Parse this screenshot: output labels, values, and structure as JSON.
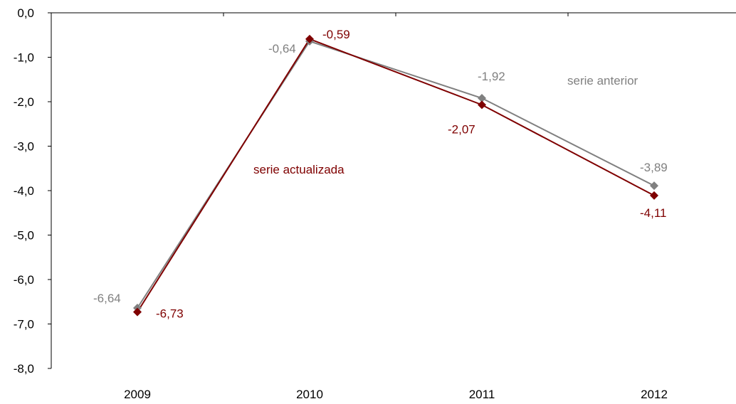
{
  "chart_data": {
    "type": "line",
    "categories": [
      "2009",
      "2010",
      "2011",
      "2012"
    ],
    "ylim": [
      -8,
      0
    ],
    "yticks": [
      "0,0",
      "-1,0",
      "-2,0",
      "-3,0",
      "-4,0",
      "-5,0",
      "-6,0",
      "-7,0",
      "-8,0"
    ],
    "grid": false,
    "legend": "none",
    "series": [
      {
        "name": "serie anterior",
        "color": "#808080",
        "values": [
          -6.64,
          -0.64,
          -1.92,
          -3.89
        ],
        "labels": [
          "-6,64",
          "-0,64",
          "-1,92",
          "-3,89"
        ]
      },
      {
        "name": "serie actualizada",
        "color": "#7f0000",
        "values": [
          -6.73,
          -0.59,
          -2.07,
          -4.11
        ],
        "labels": [
          "-6,73",
          "-0,59",
          "-2,07",
          "-4,11"
        ]
      }
    ]
  }
}
